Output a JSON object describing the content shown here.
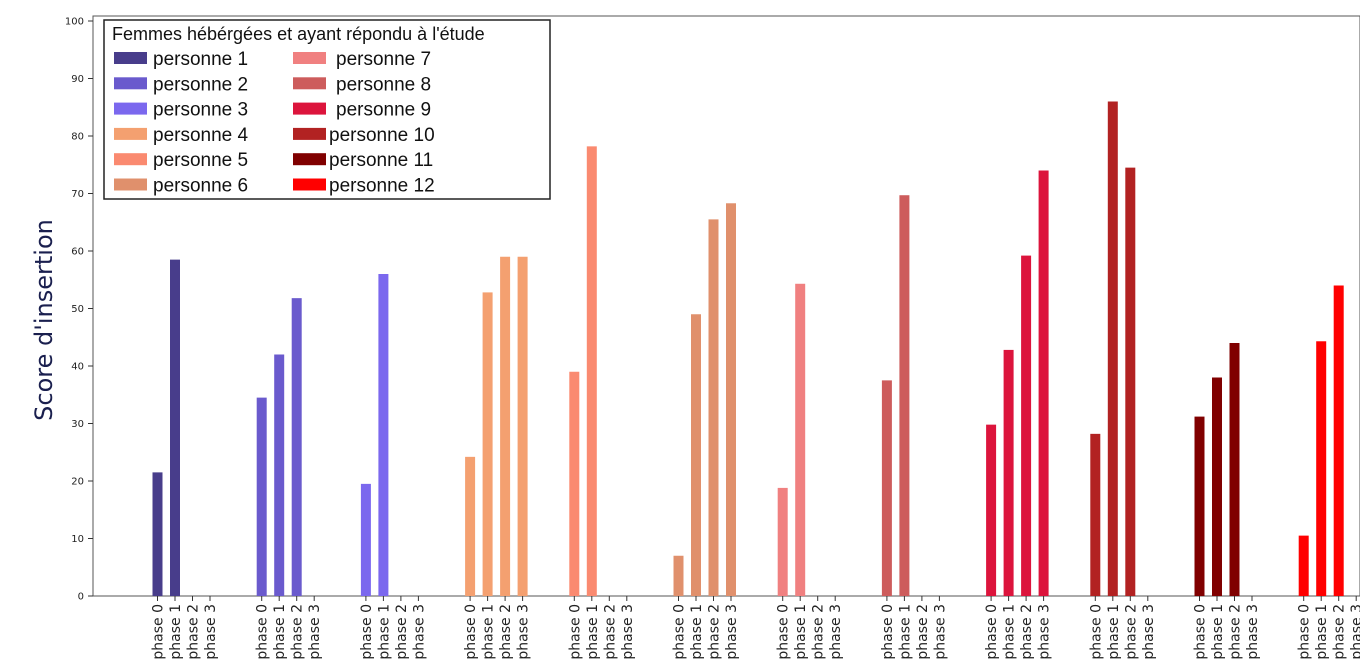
{
  "chart_data": {
    "type": "bar",
    "ylabel": "Score d'insertion",
    "xlabel": "",
    "ylim": [
      0,
      100
    ],
    "yticks": [
      0,
      10,
      20,
      30,
      40,
      50,
      60,
      70,
      80,
      90,
      100
    ],
    "phases": [
      "phase 0",
      "phase 1",
      "phase 2",
      "phase 3"
    ],
    "legend": {
      "title": "Femmes hébérgées et ayant répondu à l'étude",
      "placement": "top-left"
    },
    "series": [
      {
        "name": "personne 1",
        "color": "#483d8b",
        "values": [
          21.5,
          58.5,
          null,
          null
        ]
      },
      {
        "name": "personne 2",
        "color": "#6a5acd",
        "values": [
          34.5,
          42.0,
          51.8,
          null
        ]
      },
      {
        "name": "personne 3",
        "color": "#7b68ee",
        "values": [
          19.5,
          56.0,
          null,
          null
        ]
      },
      {
        "name": "personne 4",
        "color": "#f4a070",
        "values": [
          24.2,
          52.8,
          59.0,
          59.0
        ]
      },
      {
        "name": "personne 5",
        "color": "#fa8a70",
        "values": [
          39.0,
          78.2,
          null,
          null
        ]
      },
      {
        "name": "personne 6",
        "color": "#e0906c",
        "values": [
          7.0,
          49.0,
          65.5,
          68.3
        ]
      },
      {
        "name": "personne 7",
        "color": "#f08080",
        "values": [
          18.8,
          54.3,
          null,
          null
        ]
      },
      {
        "name": "personne 8",
        "color": "#cd5c5c",
        "values": [
          37.5,
          69.7,
          null,
          null
        ]
      },
      {
        "name": "personne 9",
        "color": "#dc143c",
        "values": [
          29.8,
          42.8,
          59.2,
          74.0
        ]
      },
      {
        "name": "personne 10",
        "color": "#b22222",
        "values": [
          28.2,
          86.0,
          74.5,
          null
        ]
      },
      {
        "name": "personne 11",
        "color": "#800000",
        "values": [
          31.2,
          38.0,
          44.0,
          null
        ]
      },
      {
        "name": "personne 12",
        "color": "#ff0000",
        "values": [
          10.5,
          44.3,
          54.0,
          null
        ]
      }
    ]
  }
}
